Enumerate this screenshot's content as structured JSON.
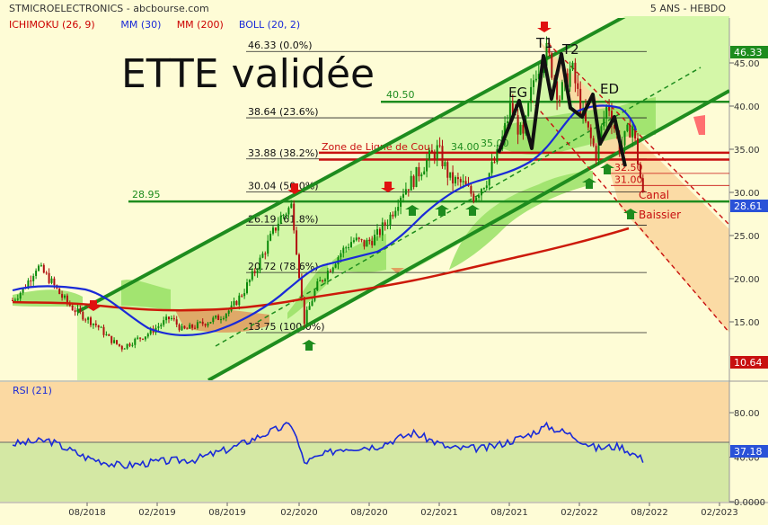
{
  "header": {
    "source": "STMICROELECTRONICS - abcbourse.com",
    "period": "5 ANS - HEBDO"
  },
  "legend": [
    {
      "label": "ICHIMOKU (26, 9)",
      "color": "#cc0000"
    },
    {
      "label": "MM (30)",
      "color": "#1a2ad8"
    },
    {
      "label": "MM (200)",
      "color": "#cc0000"
    },
    {
      "label": "BOLL (20, 2)",
      "color": "#1a2ad8"
    }
  ],
  "annotation_title": "ETTE validée",
  "fib_levels": [
    {
      "label": "46.33  (0.0%)",
      "value": 46.33
    },
    {
      "label": "38.64  (23.6%)",
      "value": 38.64
    },
    {
      "label": "33.88  (38.2%)",
      "value": 33.88
    },
    {
      "label": "30.04  (50.0%)",
      "value": 30.04
    },
    {
      "label": "26.19  (61.8%)",
      "value": 26.19
    },
    {
      "label": "20.72  (78.6%)",
      "value": 20.72
    },
    {
      "label": "13.75  (100.0%)",
      "value": 13.75
    }
  ],
  "levels": {
    "l4050": "40.50",
    "l2895": "28.95",
    "l3400": "34.00",
    "l3500": "35.00",
    "l3250": "32.50",
    "l3100": "31.00"
  },
  "pattern_labels": {
    "eg": "EG",
    "t1": "T1",
    "t2": "T2",
    "ed": "ED",
    "neckline": "Zone de Ligne de Cou",
    "canal": "Canal",
    "baissier": "Baissier"
  },
  "badges": {
    "high": "46.33",
    "last": "28.61",
    "low": "10.64"
  },
  "rsi": {
    "label": "RSI (21)",
    "last": "37.18"
  },
  "colors": {
    "price_up": "#0a8a0a",
    "price_down": "#b01010",
    "mm30": "#1a2ad8",
    "mm200": "#cc1a0a",
    "channel": "#1e8c1e",
    "badge_green": "#1e8c1e",
    "badge_blue": "#2a52d8",
    "badge_red": "#c81010"
  },
  "chart_data": {
    "type": "candlestick",
    "price_axis": {
      "ticks": [
        15.0,
        20.0,
        25.0,
        30.0,
        35.0,
        40.0,
        45.0
      ],
      "range": [
        10,
        48
      ]
    },
    "rsi_axis": {
      "ticks": [
        "0.0000",
        "40.00",
        "80.00"
      ],
      "range": [
        0,
        100
      ]
    },
    "x_ticks": [
      "08/2018",
      "02/2019",
      "08/2019",
      "02/2020",
      "08/2020",
      "02/2021",
      "08/2021",
      "02/2022",
      "08/2022",
      "02/2023"
    ],
    "price_path": [
      [
        "2018-03",
        17.5
      ],
      [
        "2018-04",
        19.0
      ],
      [
        "2018-05",
        21.5
      ],
      [
        "2018-06",
        20.0
      ],
      [
        "2018-07",
        18.0
      ],
      [
        "2018-08",
        16.5
      ],
      [
        "2018-09",
        15.5
      ],
      [
        "2018-10",
        14.5
      ],
      [
        "2018-11",
        13.0
      ],
      [
        "2018-12",
        12.0
      ],
      [
        "2019-01",
        12.8
      ],
      [
        "2019-02",
        13.5
      ],
      [
        "2019-03",
        14.5
      ],
      [
        "2019-04",
        15.5
      ],
      [
        "2019-05",
        14.0
      ],
      [
        "2019-06",
        14.5
      ],
      [
        "2019-07",
        15.0
      ],
      [
        "2019-08",
        15.5
      ],
      [
        "2019-09",
        16.5
      ],
      [
        "2019-10",
        18.5
      ],
      [
        "2019-11",
        21.0
      ],
      [
        "2019-12",
        24.0
      ],
      [
        "2020-01",
        27.0
      ],
      [
        "2020-02",
        28.5
      ],
      [
        "2020-03",
        15.0
      ],
      [
        "2020-04",
        19.0
      ],
      [
        "2020-05",
        21.0
      ],
      [
        "2020-06",
        23.0
      ],
      [
        "2020-07",
        24.5
      ],
      [
        "2020-08",
        24.0
      ],
      [
        "2020-09",
        25.0
      ],
      [
        "2020-10",
        27.0
      ],
      [
        "2020-11",
        30.0
      ],
      [
        "2020-12",
        31.5
      ],
      [
        "2021-01",
        33.5
      ],
      [
        "2021-02",
        35.0
      ],
      [
        "2021-03",
        31.5
      ],
      [
        "2021-04",
        31.0
      ],
      [
        "2021-05",
        29.5
      ],
      [
        "2021-06",
        31.5
      ],
      [
        "2021-07",
        34.5
      ],
      [
        "2021-08",
        40.0
      ],
      [
        "2021-09",
        36.0
      ],
      [
        "2021-10",
        44.0
      ],
      [
        "2021-11",
        46.3
      ],
      [
        "2021-12",
        41.0
      ],
      [
        "2022-01",
        44.5
      ],
      [
        "2022-02",
        38.5
      ],
      [
        "2022-03",
        34.5
      ],
      [
        "2022-04",
        40.5
      ],
      [
        "2022-05",
        35.0
      ],
      [
        "2022-06",
        38.0
      ],
      [
        "2022-07",
        28.6
      ]
    ],
    "rsi_path": [
      [
        "2018-03",
        52
      ],
      [
        "2018-06",
        55
      ],
      [
        "2018-09",
        40
      ],
      [
        "2018-12",
        32
      ],
      [
        "2019-03",
        36
      ],
      [
        "2019-06",
        38
      ],
      [
        "2019-09",
        48
      ],
      [
        "2019-12",
        62
      ],
      [
        "2020-02",
        70
      ],
      [
        "2020-03",
        35
      ],
      [
        "2020-06",
        48
      ],
      [
        "2020-09",
        50
      ],
      [
        "2020-12",
        62
      ],
      [
        "2021-03",
        48
      ],
      [
        "2021-06",
        48
      ],
      [
        "2021-09",
        58
      ],
      [
        "2021-11",
        68
      ],
      [
        "2022-01",
        60
      ],
      [
        "2022-03",
        48
      ],
      [
        "2022-05",
        50
      ],
      [
        "2022-07",
        37.18
      ]
    ]
  }
}
